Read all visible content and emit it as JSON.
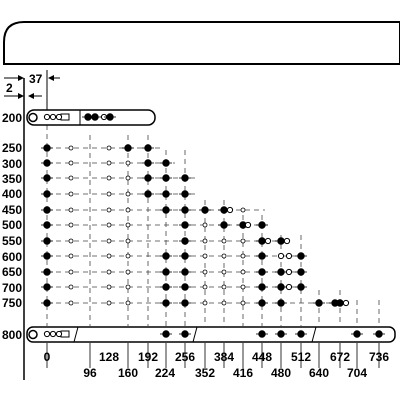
{
  "dimensions": {
    "offset_left": "2",
    "offset_first": "37"
  },
  "row_labels": [
    "200",
    "250",
    "300",
    "350",
    "400",
    "450",
    "500",
    "550",
    "600",
    "650",
    "700",
    "750",
    "800"
  ],
  "column_labels_top": [
    "0",
    "128",
    "192",
    "256",
    "384",
    "448",
    "512",
    "672",
    "736"
  ],
  "column_labels_bottom": [
    "96",
    "160",
    "224",
    "352",
    "416",
    "480",
    "640",
    "704"
  ],
  "colors": {
    "line": "#000000",
    "cabinet_fill": "#ffffff",
    "dash": "#444444"
  }
}
